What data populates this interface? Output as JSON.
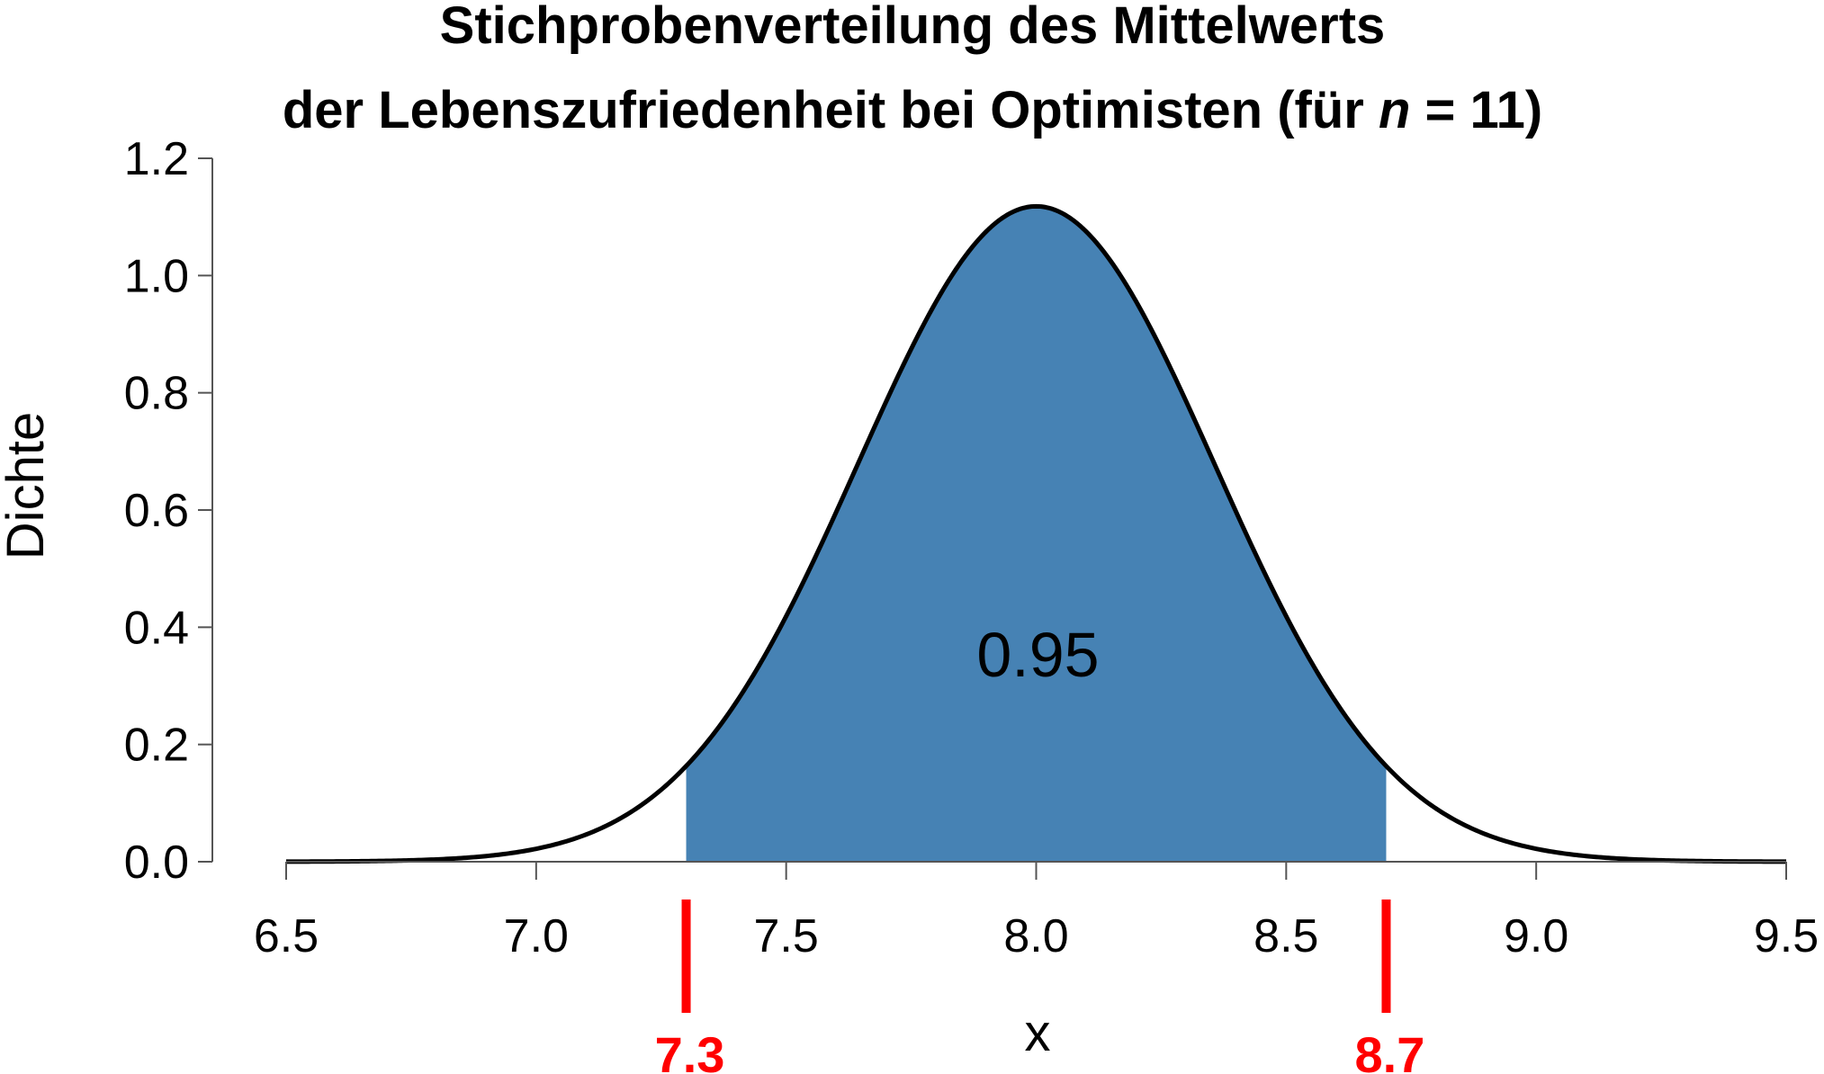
{
  "chart_data": {
    "type": "area",
    "title_line1": "Stichprobenverteilung des Mittelwerts",
    "title_line2_prefix": "der Lebenszufriedenheit bei Optimisten (für ",
    "title_line2_var": "n",
    "title_line2_suffix": " = 11)",
    "xlabel": "x",
    "ylabel": "Dichte",
    "xlim": [
      6.5,
      9.5
    ],
    "ylim": [
      0,
      1.2
    ],
    "x_ticks": [
      "6.5",
      "7.0",
      "7.5",
      "8.0",
      "8.5",
      "9.0",
      "9.5"
    ],
    "y_ticks": [
      "0.0",
      "0.2",
      "0.4",
      "0.6",
      "0.8",
      "1.0",
      "1.2"
    ],
    "distribution": {
      "kind": "normal",
      "mean": 8.0,
      "sd": 0.3568
    },
    "shaded_interval": [
      7.3,
      8.7
    ],
    "shaded_area_label": "0.95",
    "critical_values": [
      "7.3",
      "8.7"
    ],
    "colors": {
      "fill": "#4682b4",
      "curve": "#000000",
      "critical": "#ff0000"
    }
  }
}
